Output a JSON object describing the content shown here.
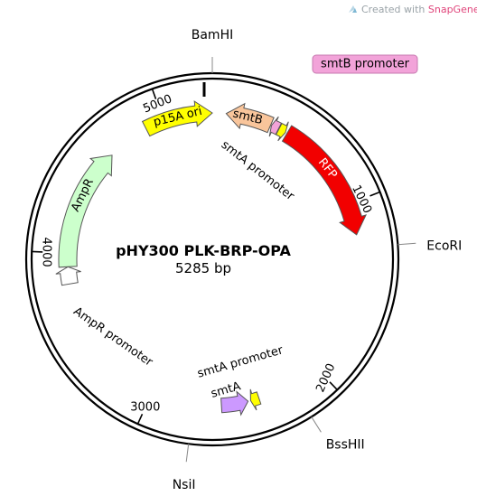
{
  "credit": {
    "prefix": "Created with ",
    "brand": "SnapGene",
    "mark": "®",
    "brand_color": "#e0457b"
  },
  "plasmid": {
    "name": "pHY300 PLK-BRP-OPA",
    "size_label": "5285 bp",
    "length": 5285
  },
  "sites": [
    {
      "id": "site-bamhi",
      "label": "BamHI",
      "position": 0
    },
    {
      "id": "site-ecori",
      "label": "EcoRI",
      "position": 1255
    },
    {
      "id": "site-bsshii",
      "label": "BssHII",
      "position": 2170
    },
    {
      "id": "site-nsii",
      "label": "NsiI",
      "position": 2750
    }
  ],
  "ticks": [
    {
      "id": "tick-1000",
      "label": "1000",
      "position": 1000
    },
    {
      "id": "tick-2000",
      "label": "2000",
      "position": 2000
    },
    {
      "id": "tick-3000",
      "label": "3000",
      "position": 3000
    },
    {
      "id": "tick-4000",
      "label": "4000",
      "position": 4000
    },
    {
      "id": "tick-5000",
      "label": "5000",
      "position": 5000
    }
  ],
  "features": [
    {
      "id": "feature-p15a-ori",
      "label": "p15A ori",
      "start": 4890,
      "end": 5285,
      "strand": "+",
      "color": "#ffff00",
      "label_color": "#000000"
    },
    {
      "id": "feature-smtb",
      "label": "smtB",
      "start": 80,
      "end": 345,
      "strand": "-",
      "color": "#f9c59b",
      "label_color": "#000000"
    },
    {
      "id": "feature-smtb-promoter",
      "label": "smtB promoter",
      "start": 350,
      "end": 395,
      "strand": "-",
      "color": "#f2a3d9"
    },
    {
      "id": "feature-smta-promoter-top",
      "label": "smtA promoter",
      "start": 398,
      "end": 440,
      "strand": "+",
      "color": "#ffff00"
    },
    {
      "id": "feature-rfp",
      "label": "RFP",
      "start": 450,
      "end": 1180,
      "strand": "+",
      "color": "#f20000",
      "label_color": "#ffffff"
    },
    {
      "id": "feature-smta-promoter-bottom",
      "label": "smtA promoter",
      "start": 2370,
      "end": 2420,
      "strand": "+",
      "color": "#ffff00"
    },
    {
      "id": "feature-smta",
      "label": "smtA",
      "start": 2435,
      "end": 2590,
      "strand": "-",
      "color": "#cc99ff"
    },
    {
      "id": "feature-ampr",
      "label": "AmpR",
      "start": 3920,
      "end": 4640,
      "strand": "+",
      "color": "#ccffcc"
    },
    {
      "id": "feature-ampr-promoter",
      "label": "AmpR promoter",
      "start": 3820,
      "end": 3920,
      "strand": "+",
      "color": "#ffffff"
    }
  ]
}
